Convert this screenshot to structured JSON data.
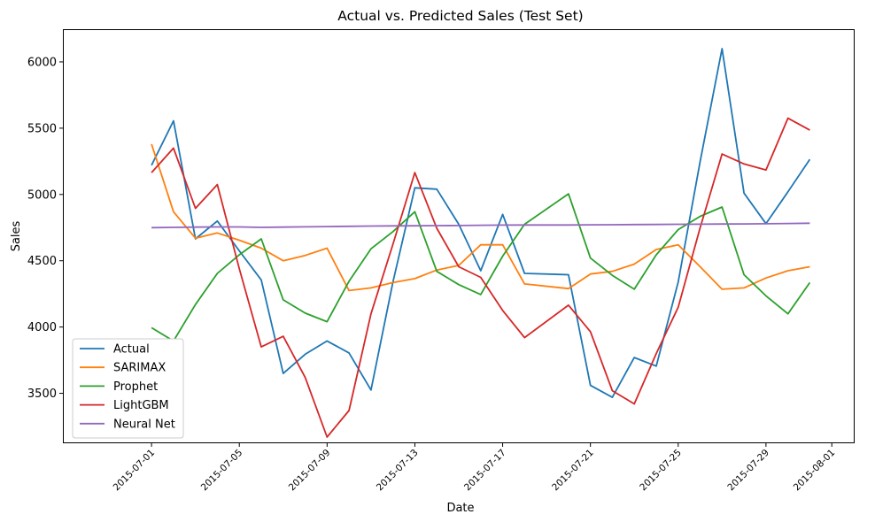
{
  "chart_data": {
    "type": "line",
    "title": "Actual vs. Predicted Sales (Test Set)",
    "xlabel": "Date",
    "ylabel": "Sales",
    "xlim": [
      "2015-06-27",
      "2015-08-02"
    ],
    "ylim": [
      3130,
      6240
    ],
    "yticks": [
      3500,
      4000,
      4500,
      5000,
      5500,
      6000
    ],
    "xticks": [
      "2015-07-01",
      "2015-07-05",
      "2015-07-09",
      "2015-07-13",
      "2015-07-17",
      "2015-07-21",
      "2015-07-25",
      "2015-07-29",
      "2015-08-01"
    ],
    "grid": false,
    "legend_position": "lower-left",
    "x": [
      "2015-07-01",
      "2015-07-02",
      "2015-07-03",
      "2015-07-04",
      "2015-07-05",
      "2015-07-06",
      "2015-07-07",
      "2015-07-08",
      "2015-07-09",
      "2015-07-10",
      "2015-07-11",
      "2015-07-12",
      "2015-07-13",
      "2015-07-14",
      "2015-07-15",
      "2015-07-16",
      "2015-07-17",
      "2015-07-18",
      "2015-07-19",
      "2015-07-20",
      "2015-07-21",
      "2015-07-22",
      "2015-07-23",
      "2015-07-24",
      "2015-07-25",
      "2015-07-26",
      "2015-07-27",
      "2015-07-28",
      "2015-07-29",
      "2015-07-30",
      "2015-07-31"
    ],
    "series": [
      {
        "name": "Actual",
        "color": "#1f77b4",
        "values": [
          5220,
          5555,
          4665,
          4800,
          4575,
          4355,
          3650,
          3795,
          3895,
          3805,
          3525,
          4340,
          5050,
          5040,
          4775,
          4425,
          4850,
          4405,
          null,
          4395,
          3560,
          3470,
          3770,
          3705,
          4340,
          5250,
          6100,
          5010,
          4780,
          5020,
          5265
        ]
      },
      {
        "name": "SARIMAX",
        "color": "#ff7f0e",
        "values": [
          5380,
          4870,
          4670,
          4710,
          4655,
          4595,
          4500,
          4540,
          4595,
          4275,
          4295,
          4335,
          4365,
          4430,
          4465,
          4620,
          4620,
          4325,
          null,
          4290,
          4400,
          4420,
          4475,
          4585,
          4620,
          4455,
          4285,
          4295,
          4370,
          4425,
          4455
        ]
      },
      {
        "name": "Prophet",
        "color": "#2ca02c",
        "values": [
          3995,
          3895,
          4170,
          4405,
          4545,
          4665,
          4205,
          4105,
          4040,
          4345,
          4590,
          4720,
          4870,
          4420,
          4320,
          4245,
          4535,
          4775,
          null,
          5005,
          4520,
          4390,
          4285,
          4545,
          4735,
          4835,
          4905,
          4395,
          4235,
          4100,
          4335
        ]
      },
      {
        "name": "LightGBM",
        "color": "#d62728",
        "values": [
          5165,
          5350,
          4895,
          5075,
          4440,
          3850,
          3930,
          3620,
          3170,
          3370,
          4100,
          4625,
          5165,
          4745,
          4455,
          4375,
          4125,
          3920,
          null,
          4165,
          3965,
          3520,
          3420,
          3800,
          4150,
          4750,
          5305,
          5230,
          5185,
          5575,
          5485
        ]
      },
      {
        "name": "Neural Net",
        "color": "#9467bd",
        "values": [
          4750,
          4752,
          4754,
          4755,
          4755,
          4752,
          4754,
          4756,
          4758,
          4760,
          4762,
          4763,
          4764,
          4765,
          4766,
          4768,
          4769,
          4770,
          null,
          4770,
          4771,
          4772,
          4773,
          4774,
          4775,
          4776,
          4777,
          4778,
          4779,
          4781,
          4783
        ]
      }
    ]
  }
}
